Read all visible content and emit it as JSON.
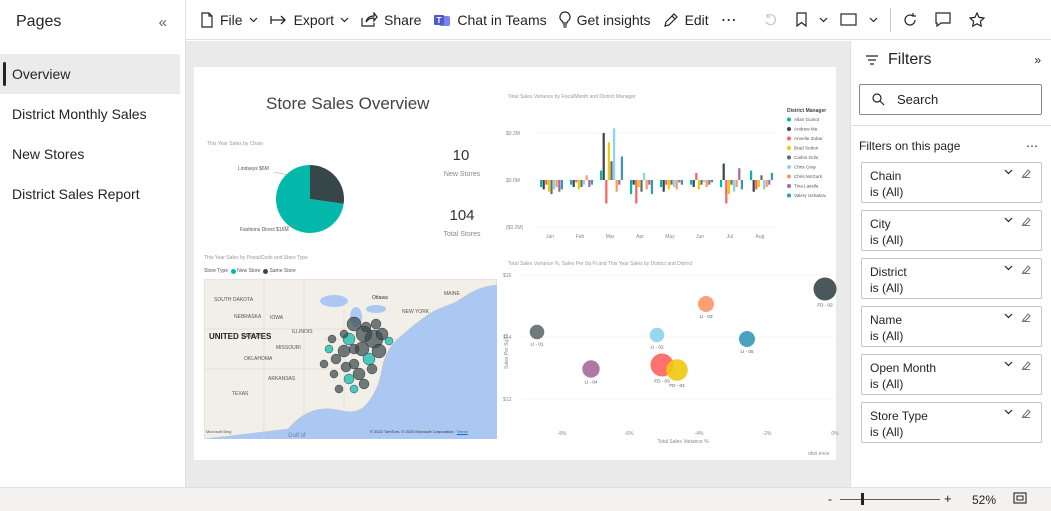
{
  "pages": {
    "title": "Pages",
    "items": [
      {
        "label": "Overview",
        "active": true
      },
      {
        "label": "District Monthly Sales",
        "active": false
      },
      {
        "label": "New Stores",
        "active": false
      },
      {
        "label": "District Sales Report",
        "active": false
      }
    ]
  },
  "toolbar": {
    "file": "File",
    "export": "Export",
    "share": "Share",
    "teams": "Chat in Teams",
    "insights": "Get insights",
    "edit": "Edit",
    "more": "⋯"
  },
  "filters": {
    "title": "Filters",
    "search_placeholder": "Search",
    "section": "Filters on this page",
    "section_more": "⋯",
    "cards": [
      {
        "name": "Chain",
        "value": "is (All)"
      },
      {
        "name": "City",
        "value": "is (All)"
      },
      {
        "name": "District",
        "value": "is (All)"
      },
      {
        "name": "Name",
        "value": "is (All)"
      },
      {
        "name": "Open Month",
        "value": "is (All)"
      },
      {
        "name": "Store Type",
        "value": "is (All)"
      }
    ]
  },
  "status": {
    "zoom_minus": "-",
    "zoom_plus": "+",
    "zoom_value": "52%",
    "zoom_level": 0.52
  },
  "report": {
    "title": "Store Sales Overview",
    "pie": {
      "title": "This Year Sales by Chain",
      "label_a": "Lindseys $6M",
      "label_b": "Fashions Direct $16M",
      "values": [
        6,
        16
      ],
      "colors": [
        "#374649",
        "#01b8aa"
      ]
    },
    "kpi_new": {
      "value": "10",
      "label": "New Stores"
    },
    "kpi_total": {
      "value": "104",
      "label": "Total Stores"
    },
    "variance_chart": {
      "title": "Total Sales Variance by FiscalMonth and District Manager",
      "yticks": [
        "$0.2M",
        "$0.0M",
        "($0.2M)"
      ],
      "months": [
        "Jan",
        "Feb",
        "Mar",
        "Apr",
        "May",
        "Jun",
        "Jul",
        "Aug"
      ],
      "legend_title": "District Manager",
      "managers": [
        {
          "name": "Allan Guinot",
          "color": "#01b8aa"
        },
        {
          "name": "Andrew Ma",
          "color": "#374649"
        },
        {
          "name": "Annelie Zubar",
          "color": "#fd625e"
        },
        {
          "name": "Brad Sutton",
          "color": "#f2c80f"
        },
        {
          "name": "Carlos Grilo",
          "color": "#5f6b6d"
        },
        {
          "name": "Chris Gray",
          "color": "#8ad4eb"
        },
        {
          "name": "Chris McGurk",
          "color": "#fe9666"
        },
        {
          "name": "Tina Lassila",
          "color": "#a66999"
        },
        {
          "name": "Valery Ushakov",
          "color": "#3599b8"
        }
      ]
    },
    "map": {
      "title": "This Year Sales by PostalCode and Store Type",
      "legend_label": "Store Type",
      "legend_new": "New Store",
      "legend_same": "Same Store",
      "country_label": "UNITED STATES",
      "places": [
        "SOUTH DAKOTA",
        "NEBRASKA",
        "KANSAS",
        "OKLAHOMA",
        "ARKANSAS",
        "TEXAS",
        "ILLINOIS",
        "IOWA",
        "MISSOURI",
        "Ottawa",
        "MAINE",
        "NEW YORK",
        "Gulf of"
      ],
      "copyright": "© 2022 TomTom, © 2020 Microsoft Corporation",
      "terms": "Terms",
      "bing": "Microsoft Bing"
    },
    "scatter": {
      "title": "Total Sales Variance %, Sales Per Sq Ft and This Year Sales by District and District",
      "ylabel": "Sales Per Sq Ft",
      "xlabel": "Total Sales Variance %",
      "yticks": [
        "$15",
        "$14",
        "$13"
      ],
      "xticks": [
        "-8%",
        "-6%",
        "-4%",
        "-2%",
        "0%"
      ],
      "points": [
        {
          "label": "FD - 01",
          "color": "#01b8aa"
        },
        {
          "label": "FD - 02",
          "color": "#374649"
        },
        {
          "label": "LI - 03",
          "color": "#fe9666"
        },
        {
          "label": "LI - 02",
          "color": "#8ad4eb"
        },
        {
          "label": "LI - 01",
          "color": "#5f6b6d"
        },
        {
          "label": "LI - 05",
          "color": "#3599b8"
        },
        {
          "label": "LI - 04",
          "color": "#a66999"
        },
        {
          "label": "FD - 03",
          "color": "#fd625e"
        },
        {
          "label": "FD - 04",
          "color": "#f2c80f"
        }
      ],
      "watermark": "obvi ence"
    }
  }
}
